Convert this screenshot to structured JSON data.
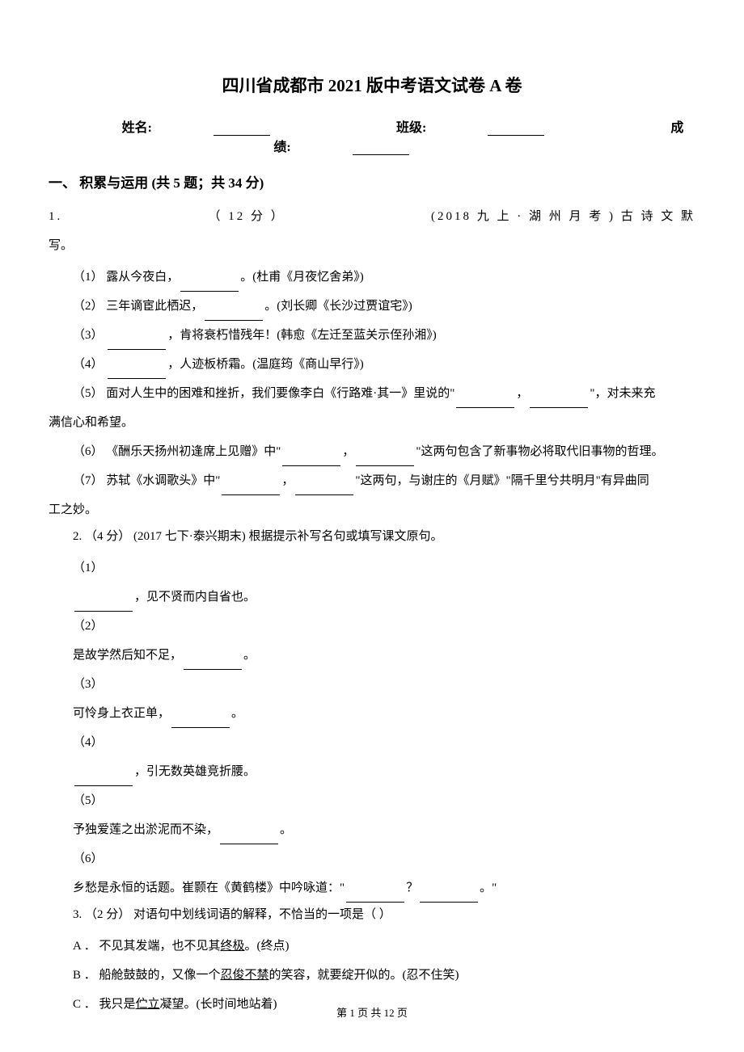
{
  "title": "四川省成都市 2021 版中考语文试卷 A 卷",
  "header": {
    "name_label": "姓名:",
    "class_label": "班级:",
    "score_label": "成绩:"
  },
  "section1": {
    "heading": "一、 积累与运用 (共 5 题；共 34 分)",
    "q1": {
      "stem_prefix": "1.",
      "stem_points": "（ 12 分 ）",
      "stem_source": "(2018 九 上 · 湖 州 月 考 ) 古 诗 文 默",
      "stem_tail": "写。",
      "s1": "（1） 露从今夜白，",
      "s1_tail": "。(杜甫《月夜忆舍弟》)",
      "s2": "（2） 三年谪宦此栖迟，",
      "s2_tail": "。(刘长卿《长沙过贾谊宅》)",
      "s3": "（3） ",
      "s3_tail": "，肯将衰朽惜残年！(韩愈《左迁至蓝关示侄孙湘》)",
      "s4": "（4） ",
      "s4_tail": "，人迹板桥霜。(温庭筠《商山早行》)",
      "s5a": "（5） 面对人生中的困难和挫折，我们要像李白《行路难·其一》里说的\"",
      "s5b": "，",
      "s5c": "\"，对未来充",
      "s5_tail": "满信心和希望。",
      "s6a": "（6） 《酬乐天扬州初逢席上见赠》中\"",
      "s6b": "，",
      "s6c": "\"这两句包含了新事物必将取代旧事物的哲理。",
      "s7a": "（7） 苏轼《水调歌头》中\"",
      "s7b": "，",
      "s7c": "\"这两句，与谢庄的《月赋》\"隔千里兮共明月\"有异曲同",
      "s7_tail": "工之妙。"
    },
    "q2": {
      "stem": "2. （4 分） (2017 七下·泰兴期末) 根据提示补写名句或填写课文原句。",
      "n1": "（1）",
      "s1_tail": "，见不贤而内自省也。",
      "n2": "（2）",
      "s2_head": "是故学然后知不足，",
      "s2_tail": "。",
      "n3": "（3）",
      "s3_head": "可怜身上衣正单，",
      "s3_tail": "。",
      "n4": "（4）",
      "s4_tail": "，引无数英雄竞折腰。",
      "n5": "（5）",
      "s5_head": "予独爱莲之出淤泥而不染，",
      "s5_tail": "。",
      "n6": "（6）",
      "s6_head": "乡愁是永恒的话题。崔颢在《黄鹤楼》中吟咏道：\"",
      "s6_mid": "？",
      "s6_tail": "。\""
    },
    "q3": {
      "stem": "3. （2 分） 对语句中划线词语的解释，不恰当的一项是（     ）",
      "optA_pre": "A ． 不见其发端，也不见其",
      "optA_ul": "终极",
      "optA_post": "。(终点)",
      "optB_pre": "B ． 船舱鼓鼓的，又像一个",
      "optB_ul": "忍俊不禁",
      "optB_post": "的笑容，就要绽开似的。(忍不住笑)",
      "optC_pre": "C ． 我只是",
      "optC_ul": "伫立",
      "optC_post": "凝望。(长时间地站着)"
    }
  },
  "footer": "第 1 页 共 12 页"
}
